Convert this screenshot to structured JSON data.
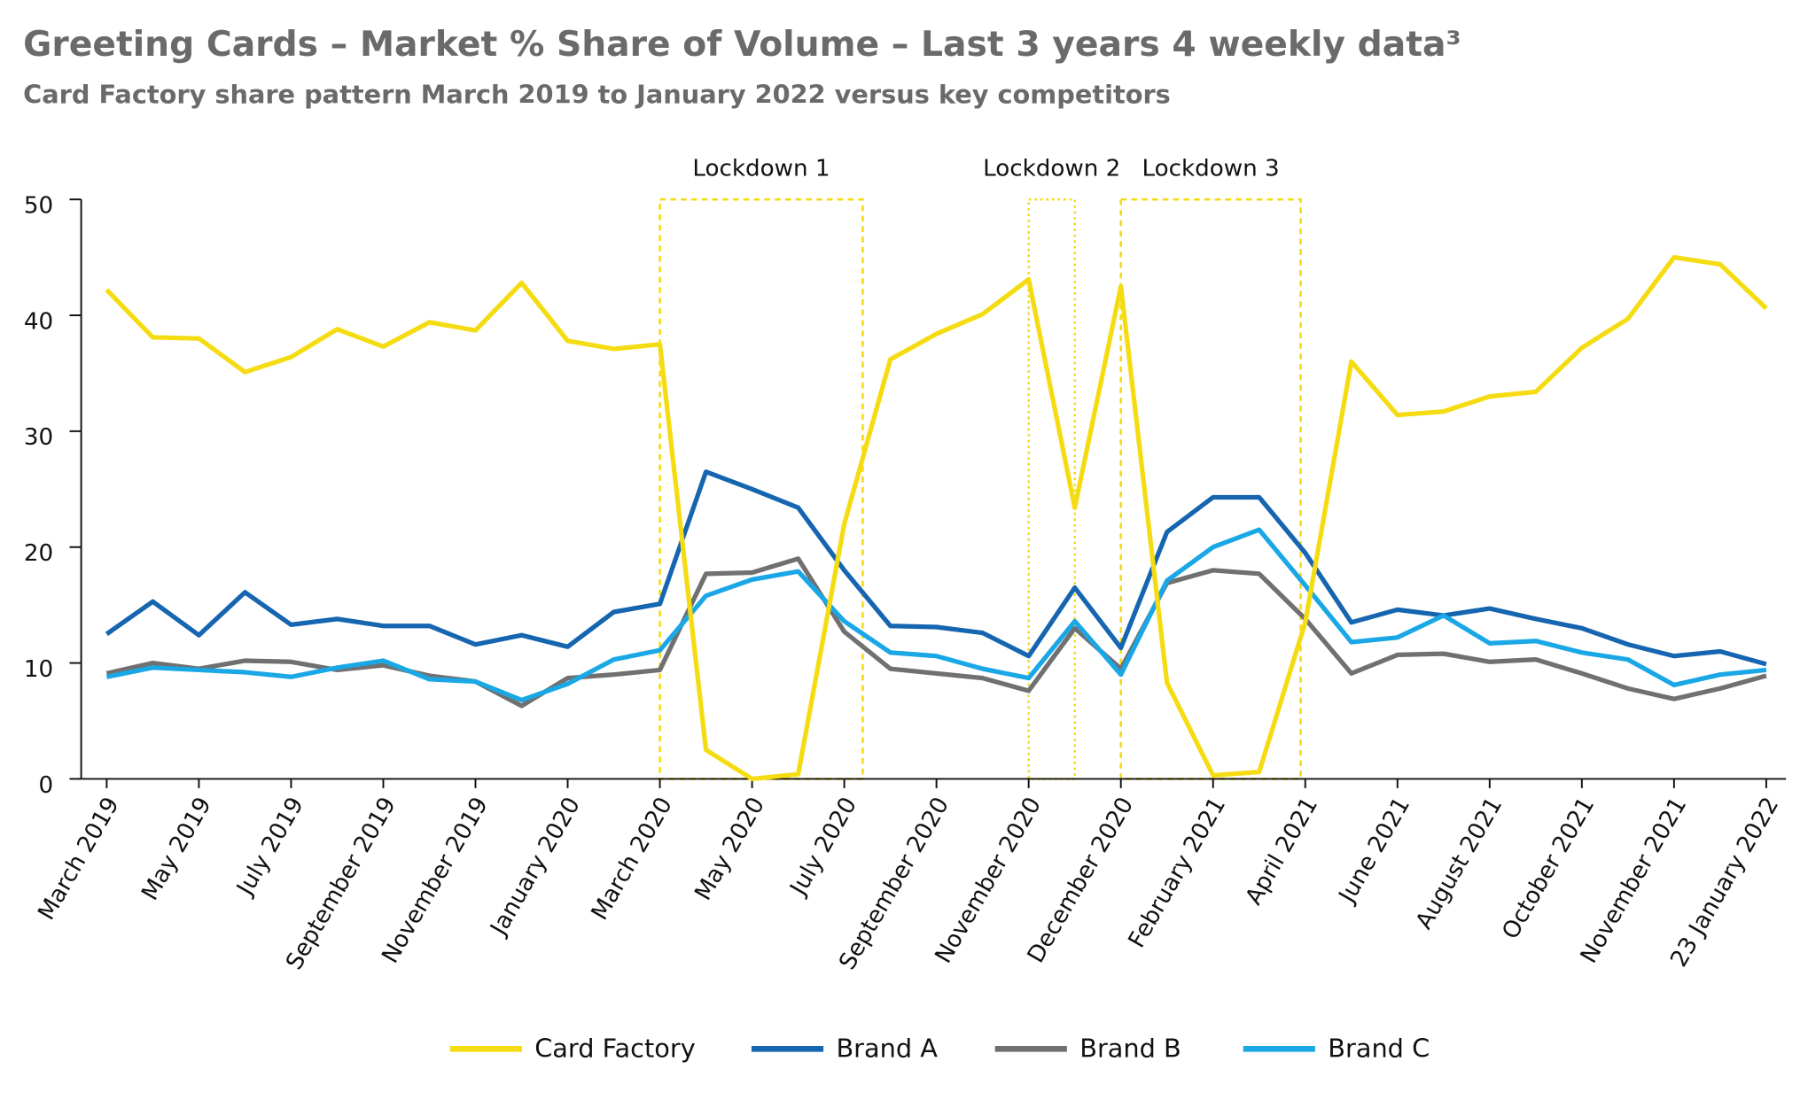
{
  "chart_data": {
    "type": "line",
    "title": "Greeting Cards – Market % Share of Volume – Last 3 years 4 weekly data³",
    "subtitle": "Card Factory share pattern March 2019 to January 2022 versus key competitors",
    "categories": [
      "March 2019",
      null,
      "May 2019",
      null,
      "July 2019",
      null,
      "September 2019",
      null,
      "November 2019",
      null,
      "January 2020",
      null,
      "March 2020",
      null,
      "May 2020",
      null,
      "July 2020",
      null,
      "September 2020",
      null,
      "November 2020",
      null,
      "December 2020",
      null,
      "February 2021",
      null,
      "April 2021",
      null,
      "June 2021",
      null,
      "August 2021",
      null,
      "October 2021",
      null,
      "November 2021",
      null,
      "23 January 2022"
    ],
    "series": [
      {
        "name": "Card Factory",
        "color": "#f5dc12",
        "values": [
          42.2,
          38.1,
          38,
          35.1,
          36.4,
          38.8,
          37.3,
          39.4,
          38.7,
          42.8,
          37.8,
          37.1,
          37.5,
          2.5,
          0,
          0.4,
          22,
          36.2,
          38.4,
          40.1,
          43.1,
          23.4,
          42.5,
          8.3,
          0.3,
          0.6,
          13.5,
          36,
          31.4,
          31.7,
          33,
          33.4,
          37.2,
          39.7,
          45,
          44.4,
          40.6
        ]
      },
      {
        "name": "Brand A",
        "color": "#1565b0",
        "values": [
          12.5,
          15.3,
          12.4,
          16.1,
          13.3,
          13.8,
          13.2,
          13.2,
          11.6,
          12.4,
          11.4,
          14.4,
          15.1,
          26.5,
          25,
          23.4,
          18,
          13.2,
          13.1,
          12.6,
          10.6,
          16.5,
          11.3,
          21.3,
          24.3,
          24.3,
          19.5,
          13.5,
          14.6,
          14.1,
          14.7,
          13.8,
          13,
          11.6,
          10.6,
          11,
          9.9
        ]
      },
      {
        "name": "Brand B",
        "color": "#707070",
        "values": [
          9.1,
          10,
          9.5,
          10.2,
          10.1,
          9.4,
          9.8,
          8.9,
          8.4,
          6.3,
          8.7,
          9,
          9.4,
          17.7,
          17.8,
          19,
          12.7,
          9.5,
          9.1,
          8.7,
          7.6,
          13,
          9.5,
          16.9,
          18,
          17.7,
          13.8,
          9.1,
          10.7,
          10.8,
          10.1,
          10.3,
          9.1,
          7.8,
          6.9,
          7.8,
          8.9
        ]
      },
      {
        "name": "Brand C",
        "color": "#1aa7e6",
        "values": [
          8.8,
          9.6,
          9.4,
          9.2,
          8.8,
          9.6,
          10.2,
          8.6,
          8.4,
          6.8,
          8.2,
          10.3,
          11.1,
          15.8,
          17.2,
          17.9,
          13.6,
          10.9,
          10.6,
          9.5,
          8.7,
          13.6,
          9,
          17.1,
          20,
          21.5,
          16.7,
          11.8,
          12.2,
          14.1,
          11.7,
          11.9,
          10.9,
          10.3,
          8.1,
          9,
          9.4
        ]
      }
    ],
    "annotations": [
      "Lockdown 1",
      "Lockdown 2",
      "Lockdown 3"
    ],
    "ylim": [
      0,
      50
    ],
    "yticks": [
      0,
      10,
      20,
      30,
      40,
      50
    ]
  }
}
